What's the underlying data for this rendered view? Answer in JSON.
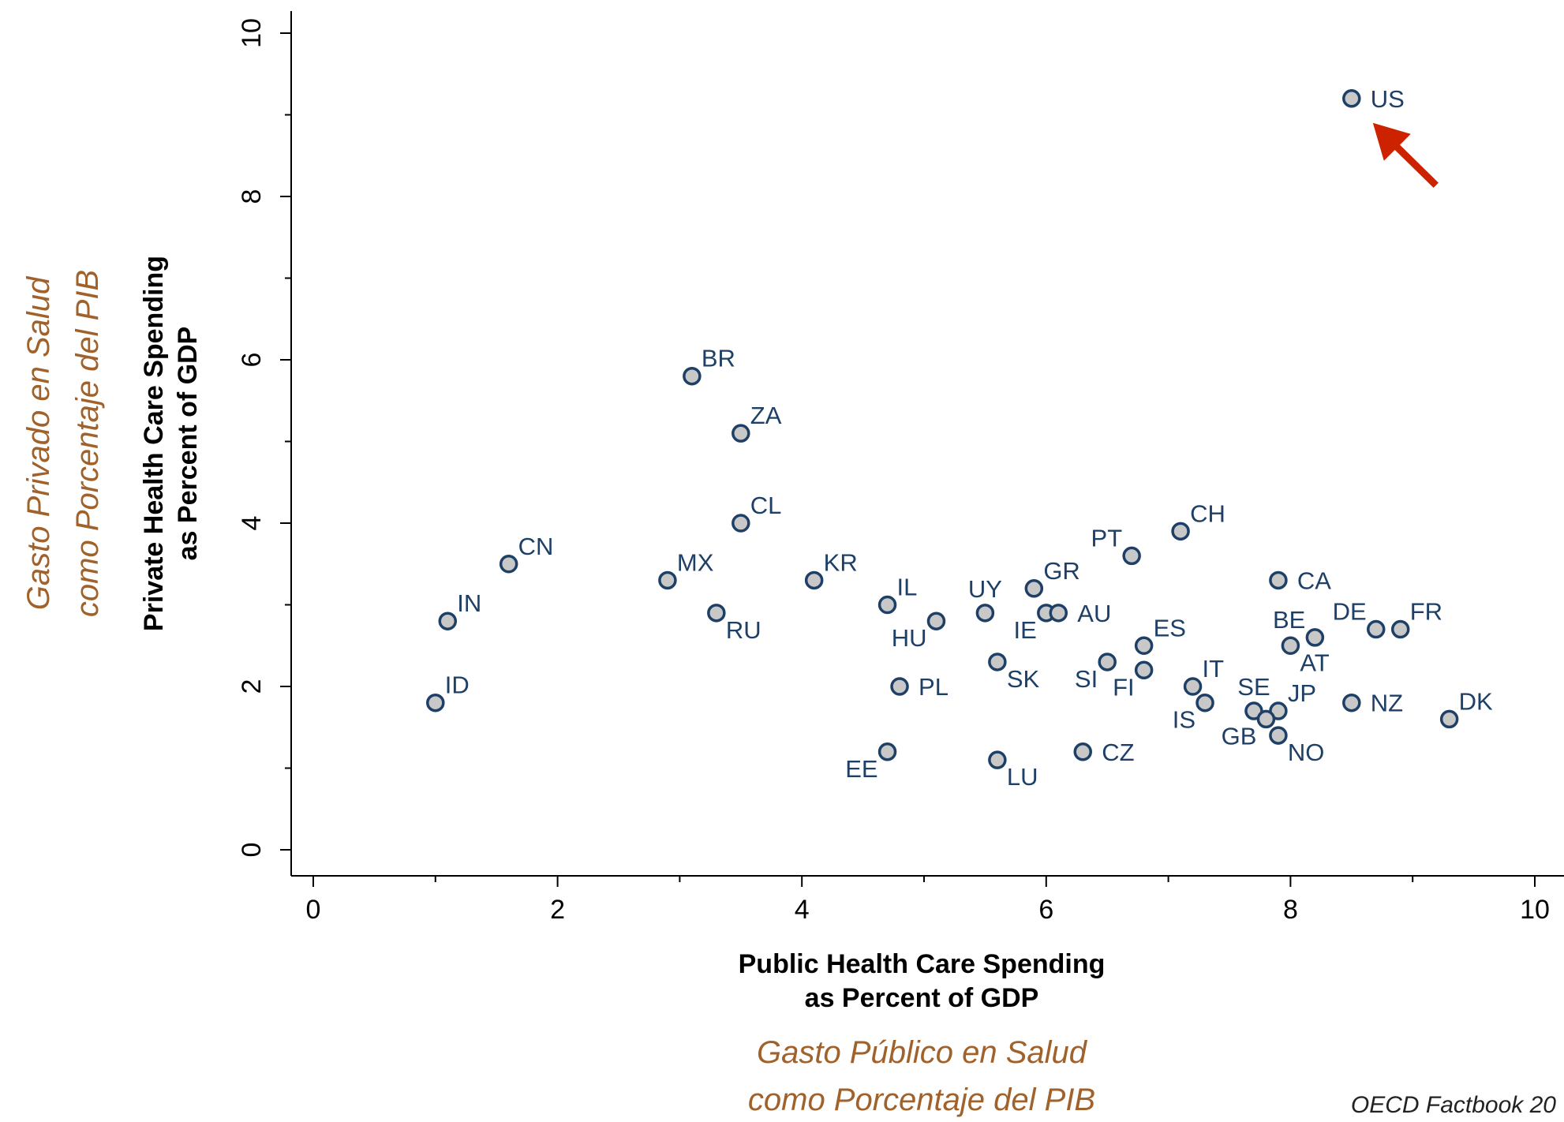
{
  "chart_data": {
    "type": "scatter",
    "xlabel": [
      "Public Health Care Spending",
      "as Percent of GDP"
    ],
    "ylabel": [
      "Private Health Care Spending",
      "as Percent of GDP"
    ],
    "xlabel_es": [
      "Gasto Público en Salud",
      "como Porcentaje del PIB"
    ],
    "ylabel_es": [
      "Gasto Privado en Salud",
      "como Porcentaje del PIB"
    ],
    "source": "OECD Factbook 20",
    "xlim": [
      0,
      10
    ],
    "ylim": [
      0,
      10
    ],
    "x_ticks": [
      0,
      2,
      4,
      6,
      8,
      10
    ],
    "y_ticks": [
      0,
      2,
      4,
      6,
      8,
      10
    ],
    "grid": false,
    "highlight": {
      "label": "US",
      "color": "#cc2200"
    },
    "colors": {
      "marker_fill": "#c8c8c8",
      "marker_edge": "#1e3f66",
      "label": "#1e3f66",
      "alt_title": "#a0612a",
      "arrow": "#cc2200"
    },
    "points": [
      {
        "label": "US",
        "x": 8.5,
        "y": 9.2,
        "pos": "r"
      },
      {
        "label": "BR",
        "x": 3.1,
        "y": 5.8,
        "pos": "tr"
      },
      {
        "label": "ZA",
        "x": 3.5,
        "y": 5.1,
        "pos": "tr"
      },
      {
        "label": "CL",
        "x": 3.5,
        "y": 4.0,
        "pos": "tr"
      },
      {
        "label": "CH",
        "x": 7.1,
        "y": 3.9,
        "pos": "tr"
      },
      {
        "label": "PT",
        "x": 6.7,
        "y": 3.6,
        "pos": "tl"
      },
      {
        "label": "CN",
        "x": 1.6,
        "y": 3.5,
        "pos": "tr"
      },
      {
        "label": "MX",
        "x": 2.9,
        "y": 3.3,
        "pos": "tr"
      },
      {
        "label": "KR",
        "x": 4.1,
        "y": 3.3,
        "pos": "tr"
      },
      {
        "label": "CA",
        "x": 7.9,
        "y": 3.3,
        "pos": "r"
      },
      {
        "label": "GR",
        "x": 5.9,
        "y": 3.2,
        "pos": "tr"
      },
      {
        "label": "IL",
        "x": 4.7,
        "y": 3.0,
        "pos": "tr"
      },
      {
        "label": "RU",
        "x": 3.3,
        "y": 2.9,
        "pos": "br"
      },
      {
        "label": "UY",
        "x": 5.5,
        "y": 2.9,
        "pos": "t"
      },
      {
        "label": "IE",
        "x": 6.0,
        "y": 2.9,
        "pos": "bl"
      },
      {
        "label": "AU",
        "x": 6.1,
        "y": 2.9,
        "pos": "r"
      },
      {
        "label": "IN",
        "x": 1.1,
        "y": 2.8,
        "pos": "tr"
      },
      {
        "label": "HU",
        "x": 5.1,
        "y": 2.8,
        "pos": "bl"
      },
      {
        "label": "DE",
        "x": 8.7,
        "y": 2.7,
        "pos": "tl"
      },
      {
        "label": "FR",
        "x": 8.9,
        "y": 2.7,
        "pos": "tr"
      },
      {
        "label": "BE",
        "x": 8.2,
        "y": 2.6,
        "pos": "tl"
      },
      {
        "label": "ES",
        "x": 6.8,
        "y": 2.5,
        "pos": "tr"
      },
      {
        "label": "AT",
        "x": 8.0,
        "y": 2.5,
        "pos": "br"
      },
      {
        "label": "SK",
        "x": 5.6,
        "y": 2.3,
        "pos": "br"
      },
      {
        "label": "SI",
        "x": 6.5,
        "y": 2.3,
        "pos": "bl"
      },
      {
        "label": "FI",
        "x": 6.8,
        "y": 2.2,
        "pos": "bl"
      },
      {
        "label": "IT",
        "x": 7.2,
        "y": 2.0,
        "pos": "tr"
      },
      {
        "label": "PL",
        "x": 4.8,
        "y": 2.0,
        "pos": "r"
      },
      {
        "label": "ID",
        "x": 1.0,
        "y": 1.8,
        "pos": "tr"
      },
      {
        "label": "IS",
        "x": 7.3,
        "y": 1.8,
        "pos": "bl"
      },
      {
        "label": "NZ",
        "x": 8.5,
        "y": 1.8,
        "pos": "r"
      },
      {
        "label": "SE",
        "x": 7.7,
        "y": 1.7,
        "pos": "t"
      },
      {
        "label": "JP",
        "x": 7.9,
        "y": 1.7,
        "pos": "tr"
      },
      {
        "label": "GB",
        "x": 7.8,
        "y": 1.6,
        "pos": "bl"
      },
      {
        "label": "DK",
        "x": 9.3,
        "y": 1.6,
        "pos": "tr"
      },
      {
        "label": "NO",
        "x": 7.9,
        "y": 1.4,
        "pos": "br"
      },
      {
        "label": "EE",
        "x": 4.7,
        "y": 1.2,
        "pos": "bl"
      },
      {
        "label": "CZ",
        "x": 6.3,
        "y": 1.2,
        "pos": "r"
      },
      {
        "label": "LU",
        "x": 5.6,
        "y": 1.1,
        "pos": "br"
      }
    ]
  }
}
